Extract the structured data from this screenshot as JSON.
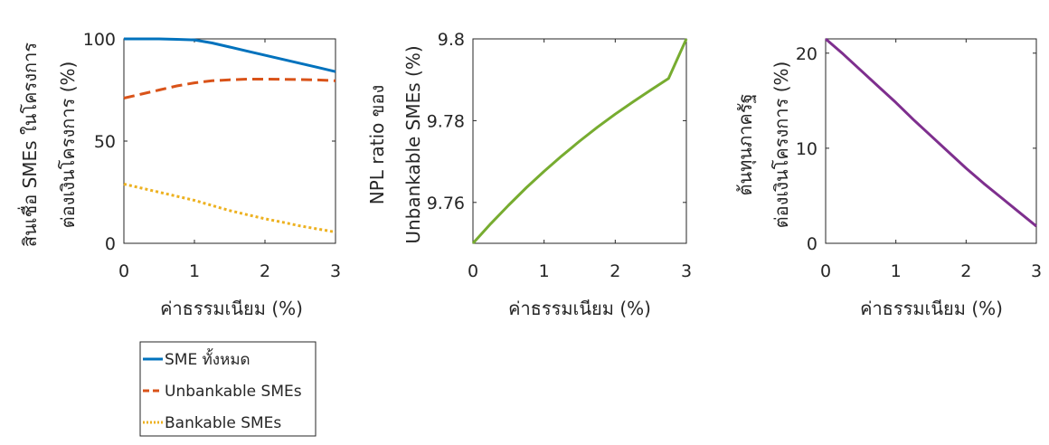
{
  "chart_data": [
    {
      "type": "line",
      "xlabel": "ค่าธรรมเนียม (%)",
      "ylabel": [
        "สินเชื่อ SMEs ในโครงการ",
        "ต่องเงินโครงการ (%)"
      ],
      "xlim": [
        0,
        3
      ],
      "ylim": [
        0,
        100
      ],
      "xticks": [
        "0",
        "1",
        "2",
        "3"
      ],
      "yticks": [
        "0",
        "50",
        "100"
      ],
      "ytick_values": [
        0,
        50,
        100
      ],
      "grid": false,
      "x": [
        0,
        0.25,
        0.5,
        0.75,
        1,
        1.25,
        1.5,
        1.75,
        2,
        2.25,
        2.5,
        2.75,
        3
      ],
      "series": [
        {
          "name": "SME ทั้งหมด",
          "color": "#0072bd",
          "style": "solid",
          "values": [
            100,
            100,
            100,
            99.8,
            99.5,
            98,
            96,
            94,
            92,
            90,
            88,
            86,
            84
          ]
        },
        {
          "name": "Unbankable SMEs",
          "color": "#d95319",
          "style": "dashed",
          "values": [
            71,
            73,
            75,
            77,
            78.5,
            79.5,
            80,
            80.3,
            80.3,
            80.2,
            80.1,
            79.9,
            79.5
          ]
        },
        {
          "name": "Bankable SMEs",
          "color": "#edb120",
          "style": "dotted",
          "values": [
            29,
            27,
            25,
            23,
            21,
            18.5,
            16,
            14,
            12,
            10.3,
            8.5,
            7,
            5.5
          ]
        }
      ]
    },
    {
      "type": "line",
      "xlabel": "ค่าธรรมเนียม  (%)",
      "ylabel": [
        "NPL ratio ของ",
        "Unbankable SMEs (%)"
      ],
      "xlim": [
        0,
        3
      ],
      "ylim": [
        9.75,
        9.8
      ],
      "xticks": [
        "0",
        "1",
        "2",
        "3"
      ],
      "yticks": [
        "9.76",
        "9.78",
        "9.8"
      ],
      "ytick_values": [
        9.76,
        9.78,
        9.8
      ],
      "grid": false,
      "x": [
        0,
        0.25,
        0.5,
        0.75,
        1,
        1.25,
        1.5,
        1.75,
        2,
        2.25,
        2.5,
        2.75,
        3
      ],
      "series": [
        {
          "name": "",
          "color": "#77ac30",
          "style": "solid",
          "values": [
            9.75,
            9.7548,
            9.7593,
            9.7636,
            9.7676,
            9.7714,
            9.775,
            9.7784,
            9.7816,
            9.7846,
            9.7875,
            9.7903,
            9.8
          ]
        }
      ]
    },
    {
      "type": "line",
      "xlabel": "ค่าธรรมเนียม  (%)",
      "ylabel": [
        "ต้นทุนภาครัฐ",
        "ต่องเงินโครงการ (%)"
      ],
      "xlim": [
        0,
        3
      ],
      "ylim": [
        0,
        21.5
      ],
      "xticks": [
        "0",
        "1",
        "2",
        "3"
      ],
      "yticks": [
        "0",
        "10",
        "20"
      ],
      "ytick_values": [
        0,
        10,
        20
      ],
      "grid": false,
      "x": [
        0,
        0.25,
        0.5,
        0.75,
        1,
        1.25,
        1.5,
        1.75,
        2,
        2.25,
        2.5,
        2.75,
        3
      ],
      "series": [
        {
          "name": "",
          "color": "#7e2f8e",
          "style": "solid",
          "values": [
            21.5,
            19.9,
            18.2,
            16.5,
            14.8,
            13.0,
            11.3,
            9.6,
            7.9,
            6.3,
            4.8,
            3.3,
            1.8
          ]
        }
      ]
    }
  ],
  "legend": {
    "entries": [
      "SME ทั้งหมด",
      "Unbankable SMEs",
      "Bankable SMEs"
    ]
  }
}
